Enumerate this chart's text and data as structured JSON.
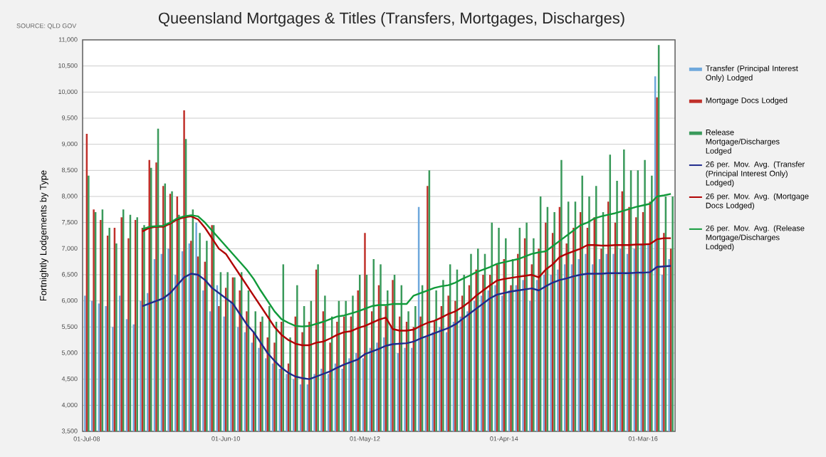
{
  "chart_data": {
    "type": "bar",
    "title": "Queensland Mortgages & Titles (Transfers, Mortgages, Discharges)",
    "ylabel": "Fortnightly Lodgements by Type",
    "annotations": [
      "SOURCE: QLD GOV"
    ],
    "categories": [
      "01-Jul-08",
      null,
      null,
      null,
      null,
      null,
      null,
      null,
      null,
      null,
      null,
      null,
      null,
      null,
      null,
      null,
      null,
      null,
      null,
      null,
      "01-Jun-10",
      null,
      null,
      null,
      null,
      null,
      null,
      null,
      null,
      null,
      null,
      null,
      null,
      null,
      null,
      null,
      null,
      null,
      null,
      null,
      "01-May-12",
      null,
      null,
      null,
      null,
      null,
      null,
      null,
      null,
      null,
      null,
      null,
      null,
      null,
      null,
      null,
      null,
      null,
      null,
      null,
      "01-Apr-14",
      null,
      null,
      null,
      null,
      null,
      null,
      null,
      null,
      null,
      null,
      null,
      null,
      null,
      null,
      null,
      null,
      null,
      null,
      null,
      "01-Mar-16",
      null,
      null,
      null,
      null
    ],
    "ylim": [
      3500,
      11000
    ],
    "yticks": [
      {
        "value": 3500,
        "label": "3,500"
      },
      {
        "value": 4000,
        "label": "4,000"
      },
      {
        "value": 4500,
        "label": "4,500"
      },
      {
        "value": 5000,
        "label": "5,000"
      },
      {
        "value": 5500,
        "label": "5,500"
      },
      {
        "value": 6000,
        "label": "6,000"
      },
      {
        "value": 6500,
        "label": "6,500"
      },
      {
        "value": 7000,
        "label": "7,000"
      },
      {
        "value": 7500,
        "label": "7,500"
      },
      {
        "value": 8000,
        "label": "8,000"
      },
      {
        "value": 8500,
        "label": "8,500"
      },
      {
        "value": 9000,
        "label": "9,000"
      },
      {
        "value": 9500,
        "label": "9,500"
      },
      {
        "value": 10000,
        "label": "10,000"
      },
      {
        "value": 10500,
        "label": "10,500"
      },
      {
        "value": 11000,
        "label": "11,000"
      }
    ],
    "grid": "y",
    "legend": "right",
    "marker": "none",
    "series": [
      {
        "name": "Transfer (Principal Interest Only) Lodged",
        "color": "#6fa8dc",
        "values": [
          6100,
          6000,
          5950,
          5900,
          5500,
          6100,
          5650,
          5550,
          6000,
          6150,
          6800,
          6900,
          7000,
          6500,
          6950,
          7100,
          7500,
          6200,
          5800,
          6300,
          5700,
          6000,
          5500,
          5400,
          5200,
          5100,
          4900,
          4800,
          4700,
          4600,
          4500,
          4400,
          4400,
          4600,
          4700,
          4600,
          4800,
          4700,
          4900,
          5000,
          4900,
          5100,
          5200,
          5300,
          5500,
          5000,
          5100,
          5100,
          7800,
          5300,
          5400,
          5500,
          5400,
          5600,
          5700,
          5800,
          6000,
          6100,
          6200,
          6300,
          6100,
          6200,
          6300,
          6400,
          6000,
          6400,
          6500,
          6500,
          6600,
          6700,
          6700,
          6800,
          6900,
          6700,
          6800,
          6900,
          6900,
          7000,
          6900,
          7000,
          7100,
          7100,
          10300,
          6500,
          6800
        ]
      },
      {
        "name": "Mortgage Docs Lodged",
        "color": "#c0302a",
        "values": [
          9200,
          7750,
          7550,
          7250,
          7400,
          7600,
          7200,
          7550,
          7400,
          8700,
          8650,
          8200,
          8050,
          8000,
          9650,
          7150,
          6850,
          6750,
          7450,
          5900,
          6250,
          6450,
          6200,
          5800,
          5400,
          5600,
          5300,
          5200,
          5600,
          4800,
          5700,
          5400,
          5600,
          6600,
          5800,
          5200,
          5600,
          5700,
          5700,
          6200,
          7300,
          5800,
          6300,
          5900,
          6400,
          5700,
          5600,
          5500,
          5700,
          8200,
          5600,
          5900,
          6100,
          6000,
          6100,
          6300,
          6600,
          6500,
          6500,
          6700,
          6800,
          6300,
          6900,
          7200,
          6700,
          7000,
          7500,
          7300,
          7800,
          7100,
          7400,
          7700,
          7400,
          7600,
          7000,
          7900,
          7500,
          8100,
          7800,
          7600,
          7700,
          7900,
          9900,
          7300,
          7000
        ]
      },
      {
        "name": "Release Mortgage/Discharges Lodged",
        "color": "#3a9a5b",
        "values": [
          8400,
          7700,
          7750,
          7400,
          7100,
          7750,
          7650,
          7600,
          7450,
          8550,
          9300,
          8250,
          8100,
          7650,
          9100,
          7750,
          7300,
          7150,
          7450,
          6550,
          6550,
          6450,
          6550,
          6200,
          5800,
          5700,
          5900,
          5600,
          6700,
          5300,
          6300,
          5900,
          6000,
          6700,
          6100,
          5700,
          6000,
          6000,
          6100,
          6500,
          6500,
          6800,
          6700,
          6200,
          6500,
          6300,
          5800,
          5900,
          6300,
          8500,
          6200,
          6400,
          6700,
          6600,
          6500,
          6900,
          7000,
          6900,
          7500,
          7400,
          7200,
          6800,
          7400,
          7500,
          7200,
          8000,
          7800,
          7700,
          8700,
          7900,
          7900,
          8400,
          8000,
          8200,
          7700,
          8800,
          8300,
          8900,
          8500,
          8500,
          8700,
          8400,
          10900,
          8000,
          8000
        ]
      },
      {
        "name": "26 per. Mov. Avg. (Transfer (Principal Interest Only) Lodged)",
        "type": "line",
        "color": "#1f2a8c",
        "values": [
          null,
          null,
          null,
          null,
          null,
          null,
          null,
          null,
          5900,
          5950,
          6000,
          6050,
          6150,
          6300,
          6450,
          6520,
          6500,
          6400,
          6250,
          6150,
          6050,
          5950,
          5750,
          5550,
          5400,
          5200,
          5000,
          4850,
          4720,
          4620,
          4550,
          4520,
          4500,
          4550,
          4600,
          4650,
          4720,
          4780,
          4830,
          4880,
          4980,
          5030,
          5080,
          5140,
          5170,
          5180,
          5190,
          5220,
          5280,
          5330,
          5380,
          5430,
          5480,
          5550,
          5650,
          5750,
          5850,
          5950,
          6050,
          6120,
          6150,
          6180,
          6200,
          6220,
          6240,
          6200,
          6280,
          6350,
          6400,
          6430,
          6470,
          6500,
          6520,
          6520,
          6520,
          6530,
          6530,
          6530,
          6530,
          6540,
          6540,
          6550,
          6650,
          6660,
          6670
        ]
      },
      {
        "name": "26 per. Mov. Avg. (Mortgage Docs Lodged)",
        "type": "line",
        "color": "#b00000",
        "values": [
          null,
          null,
          null,
          null,
          null,
          null,
          null,
          null,
          7330,
          7400,
          7420,
          7420,
          7480,
          7560,
          7600,
          7620,
          7560,
          7400,
          7200,
          7000,
          6900,
          6700,
          6500,
          6300,
          6100,
          5900,
          5700,
          5500,
          5350,
          5250,
          5180,
          5150,
          5150,
          5200,
          5220,
          5280,
          5350,
          5400,
          5420,
          5480,
          5520,
          5580,
          5640,
          5680,
          5460,
          5430,
          5430,
          5450,
          5520,
          5580,
          5620,
          5680,
          5750,
          5800,
          5880,
          5980,
          6100,
          6200,
          6300,
          6390,
          6420,
          6440,
          6460,
          6480,
          6500,
          6450,
          6600,
          6700,
          6840,
          6900,
          6950,
          7000,
          7070,
          7070,
          7060,
          7060,
          7070,
          7070,
          7070,
          7080,
          7080,
          7090,
          7180,
          7200,
          7200
        ]
      },
      {
        "name": "26 per. Mov. Avg. (Release Mortgage/Discharges Lodged)",
        "type": "line",
        "color": "#119a3a",
        "values": [
          null,
          null,
          null,
          null,
          null,
          null,
          null,
          null,
          7370,
          7420,
          7430,
          7440,
          7500,
          7580,
          7620,
          7640,
          7620,
          7500,
          7350,
          7200,
          7050,
          6900,
          6750,
          6600,
          6420,
          6200,
          6000,
          5800,
          5650,
          5580,
          5520,
          5510,
          5520,
          5560,
          5600,
          5650,
          5700,
          5720,
          5760,
          5800,
          5850,
          5900,
          5920,
          5920,
          5940,
          5940,
          5940,
          6100,
          6150,
          6200,
          6250,
          6280,
          6300,
          6350,
          6420,
          6480,
          6550,
          6600,
          6650,
          6710,
          6740,
          6770,
          6800,
          6850,
          6900,
          6930,
          6950,
          7050,
          7150,
          7250,
          7350,
          7450,
          7500,
          7580,
          7620,
          7650,
          7680,
          7720,
          7760,
          7800,
          7830,
          7860,
          8000,
          8020,
          8050
        ]
      }
    ]
  }
}
